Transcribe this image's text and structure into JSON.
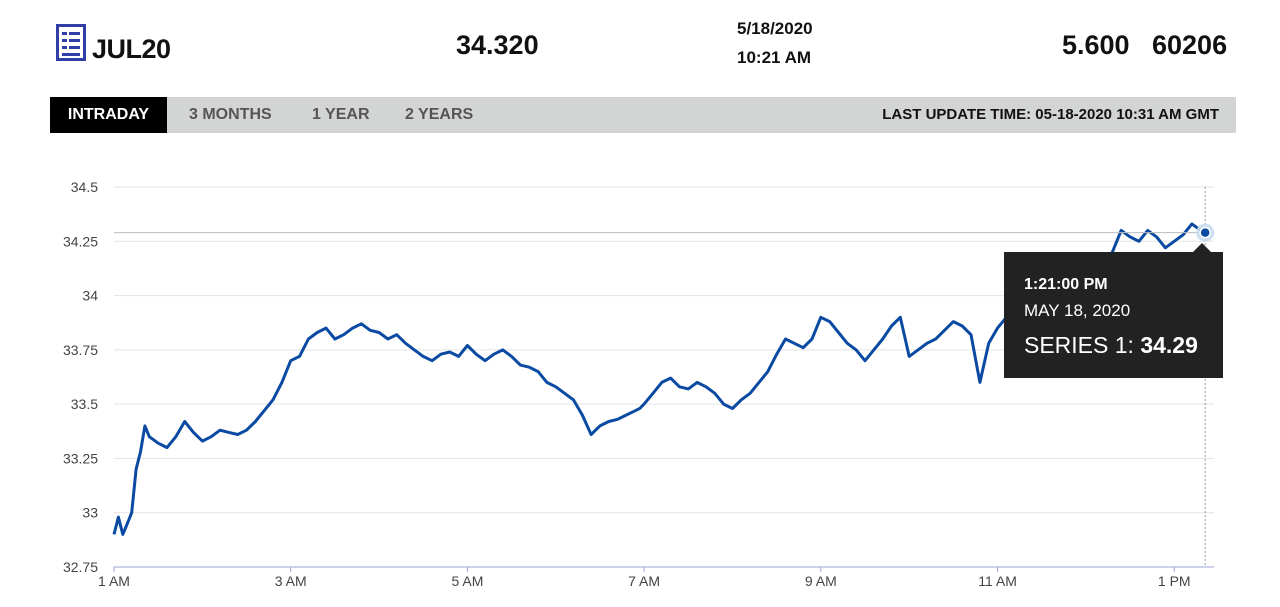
{
  "header": {
    "symbol": "JUL20",
    "last_price": "34.320",
    "date": "5/18/2020",
    "time": "10:21 AM",
    "change": "5.600",
    "volume": "60206",
    "logo_icon": "report-document-icon",
    "brand_color": "#2f3fa6"
  },
  "tabs": [
    {
      "label": "INTRADAY",
      "active": true
    },
    {
      "label": "3 MONTHS",
      "active": false
    },
    {
      "label": "1 YEAR",
      "active": false
    },
    {
      "label": "2 YEARS",
      "active": false
    }
  ],
  "last_update": "LAST UPDATE TIME: 05-18-2020 10:31 AM GMT",
  "tooltip": {
    "time": "1:21:00 PM",
    "date": "MAY 18, 2020",
    "series_label": "SERIES 1:",
    "series_value": "34.29"
  },
  "chart_data": {
    "type": "line",
    "ylim": [
      32.75,
      34.5
    ],
    "yticks": [
      "34.5",
      "34.25",
      "34",
      "33.75",
      "33.5",
      "33.25",
      "33",
      "32.75"
    ],
    "ytick_values": [
      34.5,
      34.25,
      34,
      33.75,
      33.5,
      33.25,
      33,
      32.75
    ],
    "xlim": [
      1.0,
      13.45
    ],
    "xticks": [
      "1 AM",
      "3 AM",
      "5 AM",
      "7 AM",
      "9 AM",
      "11 AM",
      "1 PM"
    ],
    "xtick_hours": [
      1,
      3,
      5,
      7,
      9,
      11,
      13
    ],
    "grid": true,
    "line_color": "#0b4aa2",
    "series": [
      {
        "name": "Series 1",
        "x": [
          1.0,
          1.05,
          1.1,
          1.15,
          1.2,
          1.25,
          1.3,
          1.35,
          1.4,
          1.5,
          1.6,
          1.7,
          1.8,
          1.9,
          2.0,
          2.1,
          2.2,
          2.3,
          2.4,
          2.5,
          2.6,
          2.7,
          2.8,
          2.9,
          3.0,
          3.1,
          3.2,
          3.3,
          3.4,
          3.5,
          3.6,
          3.7,
          3.8,
          3.9,
          4.0,
          4.1,
          4.2,
          4.3,
          4.4,
          4.5,
          4.6,
          4.7,
          4.8,
          4.9,
          5.0,
          5.1,
          5.2,
          5.3,
          5.4,
          5.5,
          5.6,
          5.7,
          5.8,
          5.9,
          6.0,
          6.1,
          6.2,
          6.3,
          6.4,
          6.5,
          6.6,
          6.7,
          6.8,
          6.9,
          6.95,
          7.0,
          7.1,
          7.2,
          7.3,
          7.4,
          7.5,
          7.6,
          7.7,
          7.8,
          7.9,
          8.0,
          8.1,
          8.2,
          8.3,
          8.4,
          8.5,
          8.6,
          8.7,
          8.8,
          8.9,
          9.0,
          9.1,
          9.2,
          9.3,
          9.4,
          9.5,
          9.6,
          9.7,
          9.8,
          9.9,
          10.0,
          10.1,
          10.2,
          10.3,
          10.4,
          10.5,
          10.6,
          10.7,
          10.8,
          10.9,
          11.0,
          11.1,
          12.0,
          12.1,
          12.2,
          12.3,
          12.4,
          12.5,
          12.6,
          12.7,
          12.8,
          12.9,
          13.0,
          13.1,
          13.2,
          13.3,
          13.35
        ],
        "values": [
          32.9,
          32.98,
          32.9,
          32.95,
          33.0,
          33.2,
          33.28,
          33.4,
          33.35,
          33.32,
          33.3,
          33.35,
          33.42,
          33.37,
          33.33,
          33.35,
          33.38,
          33.37,
          33.36,
          33.38,
          33.42,
          33.47,
          33.52,
          33.6,
          33.7,
          33.72,
          33.8,
          33.83,
          33.85,
          33.8,
          33.82,
          33.85,
          33.87,
          33.84,
          33.83,
          33.8,
          33.82,
          33.78,
          33.75,
          33.72,
          33.7,
          33.73,
          33.74,
          33.72,
          33.77,
          33.73,
          33.7,
          33.73,
          33.75,
          33.72,
          33.68,
          33.67,
          33.65,
          33.6,
          33.58,
          33.55,
          33.52,
          33.45,
          33.36,
          33.4,
          33.42,
          33.43,
          33.45,
          33.47,
          33.48,
          33.5,
          33.55,
          33.6,
          33.62,
          33.58,
          33.57,
          33.6,
          33.58,
          33.55,
          33.5,
          33.48,
          33.52,
          33.55,
          33.6,
          33.65,
          33.73,
          33.8,
          33.78,
          33.76,
          33.8,
          33.9,
          33.88,
          33.83,
          33.78,
          33.75,
          33.7,
          33.75,
          33.8,
          33.86,
          33.9,
          33.72,
          33.75,
          33.78,
          33.8,
          33.84,
          33.88,
          33.86,
          33.82,
          33.6,
          33.78,
          33.85,
          33.9,
          34.02,
          34.05,
          34.12,
          34.2,
          34.3,
          34.27,
          34.25,
          34.3,
          34.27,
          34.22,
          34.25,
          34.28,
          34.33,
          34.3,
          34.29
        ]
      }
    ],
    "highlight": {
      "x": 13.35,
      "y": 34.29
    }
  }
}
